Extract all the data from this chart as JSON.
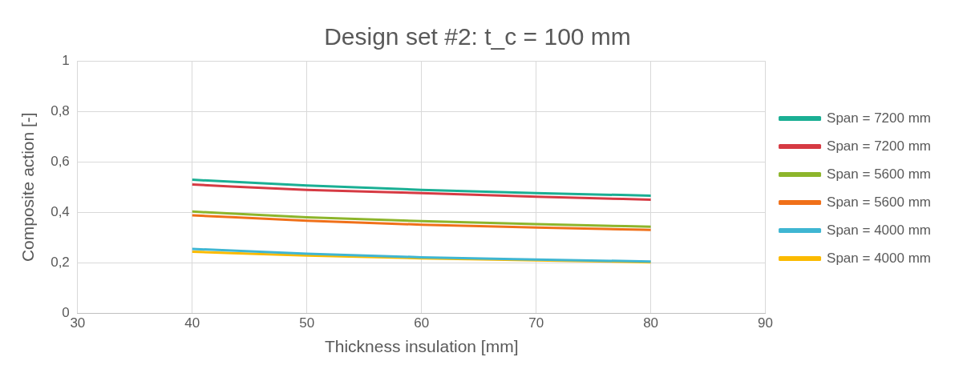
{
  "chart_data": {
    "type": "line",
    "title": "Design set #2: t_c = 100 mm",
    "xlabel": "Thickness insulation [mm]",
    "ylabel": "Composite action [-]",
    "x": [
      40,
      50,
      60,
      70,
      80
    ],
    "xlim": [
      30,
      90
    ],
    "xticks": [
      30,
      40,
      50,
      60,
      70,
      80,
      90
    ],
    "ylim": [
      0,
      1
    ],
    "yticks": [
      {
        "value": 0,
        "label": "0"
      },
      {
        "value": 0.2,
        "label": "0,2"
      },
      {
        "value": 0.4,
        "label": "0,4"
      },
      {
        "value": 0.6,
        "label": "0,6"
      },
      {
        "value": 0.8,
        "label": "0,8"
      },
      {
        "value": 1,
        "label": "1"
      }
    ],
    "grid": true,
    "legend": "right",
    "marker": "none",
    "line_style": "solid",
    "series": [
      {
        "name": "Span = 7200 mm",
        "color": "#1aaf94",
        "values": [
          0.529,
          0.506,
          0.489,
          0.476,
          0.466
        ]
      },
      {
        "name": "Span = 7200 mm",
        "color": "#d63a43",
        "values": [
          0.51,
          0.489,
          0.476,
          0.462,
          0.45
        ]
      },
      {
        "name": "Span = 5600 mm",
        "color": "#8db52b",
        "values": [
          0.403,
          0.38,
          0.365,
          0.353,
          0.343
        ]
      },
      {
        "name": "Span = 5600 mm",
        "color": "#f07019",
        "values": [
          0.388,
          0.367,
          0.351,
          0.34,
          0.33
        ]
      },
      {
        "name": "Span = 4000 mm",
        "color": "#3fb6d2",
        "values": [
          0.255,
          0.236,
          0.222,
          0.213,
          0.205
        ]
      },
      {
        "name": "Span = 4000 mm",
        "color": "#fbba00",
        "values": [
          0.244,
          0.229,
          0.218,
          0.21,
          0.202
        ]
      }
    ]
  }
}
